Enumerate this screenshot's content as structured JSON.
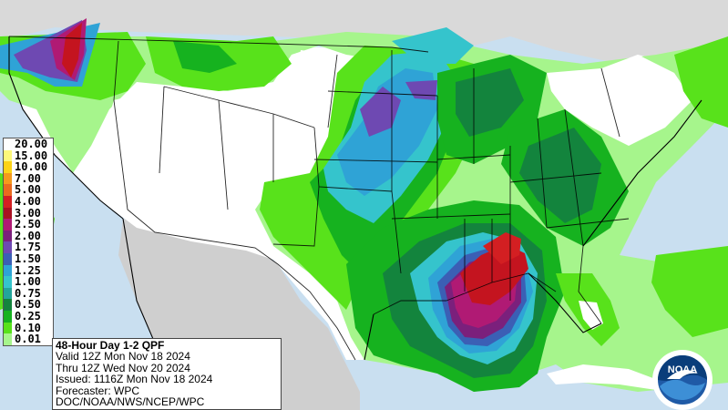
{
  "legend": {
    "units_values": [
      {
        "label": "20.00",
        "color": "#fefefe"
      },
      {
        "label": "15.00",
        "color": "#fdf87a"
      },
      {
        "label": "10.00",
        "color": "#fcd317"
      },
      {
        "label": "7.00",
        "color": "#f59a1d"
      },
      {
        "label": "5.00",
        "color": "#ea6b1f"
      },
      {
        "label": "4.00",
        "color": "#d31f22"
      },
      {
        "label": "3.00",
        "color": "#a81021"
      },
      {
        "label": "2.50",
        "color": "#b01a74"
      },
      {
        "label": "2.00",
        "color": "#7b207c"
      },
      {
        "label": "1.75",
        "color": "#6e49b2"
      },
      {
        "label": "1.50",
        "color": "#3b5fb5"
      },
      {
        "label": "1.25",
        "color": "#2fa3d6"
      },
      {
        "label": "1.00",
        "color": "#35c4cc"
      },
      {
        "label": "0.75",
        "color": "#23a59b"
      },
      {
        "label": "0.50",
        "color": "#13843d"
      },
      {
        "label": "0.25",
        "color": "#16b21f"
      },
      {
        "label": "0.10",
        "color": "#58e21b"
      },
      {
        "label": "0.01",
        "color": "#a6f58c"
      }
    ]
  },
  "info": {
    "title": "48-Hour Day 1-2 QPF",
    "valid": "Valid 12Z Mon Nov 18 2024",
    "thru": "Thru 12Z Wed Nov 20 2024",
    "issued": "Issued: 1116Z Mon Nov 18 2024",
    "forecaster": "Forecaster: WPC",
    "agency": "DOC/NOAA/NWS/NCEP/WPC"
  },
  "logo": {
    "text": "NOAA"
  }
}
